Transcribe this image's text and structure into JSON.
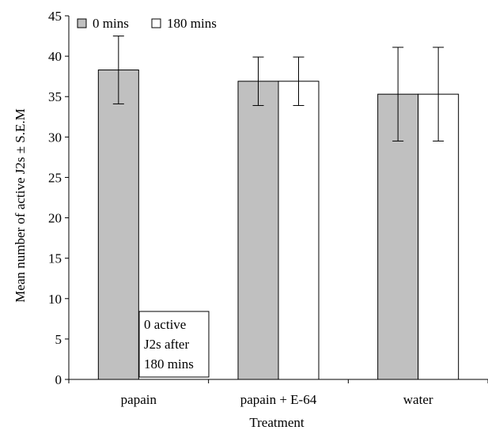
{
  "chart_data": {
    "type": "bar",
    "title": "",
    "xlabel": "Treatment",
    "ylabel": "Mean number of active J2s ± S.E.M",
    "ylim": [
      0,
      45
    ],
    "yticks": [
      0,
      5,
      10,
      15,
      20,
      25,
      30,
      35,
      40,
      45
    ],
    "categories": [
      "papain",
      "papain + E-64",
      "water"
    ],
    "series": [
      {
        "name": "0 mins",
        "color": "#c0c0c0",
        "values": [
          38.3,
          36.9,
          35.3
        ],
        "error_low": [
          34.1,
          33.9,
          29.5
        ],
        "error_high": [
          42.5,
          39.9,
          41.1
        ]
      },
      {
        "name": "180 mins",
        "color": "#ffffff",
        "values": [
          0,
          36.9,
          35.3
        ],
        "error_low": [
          null,
          33.9,
          29.5
        ],
        "error_high": [
          null,
          39.9,
          41.1
        ]
      }
    ],
    "legend_position": "top-left",
    "grid": false,
    "annotation": {
      "lines": [
        "0 active",
        "J2s after",
        "180 mins"
      ]
    }
  }
}
